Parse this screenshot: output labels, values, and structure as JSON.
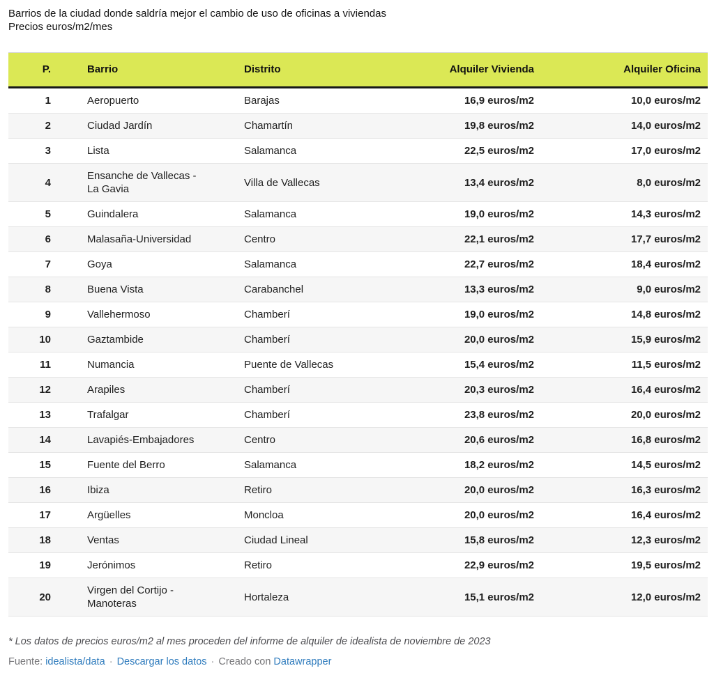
{
  "header": {
    "title": "Barrios de la ciudad donde saldría mejor el cambio de uso de oficinas a viviendas",
    "subtitle": "Precios euros/m2/mes"
  },
  "table": {
    "columns": [
      {
        "key": "rank",
        "label": "P."
      },
      {
        "key": "barrio",
        "label": "Barrio"
      },
      {
        "key": "distrito",
        "label": "Distrito"
      },
      {
        "key": "alquiler-vivienda",
        "label": "Alquiler Vivienda"
      },
      {
        "key": "alquiler-oficina",
        "label": "Alquiler Oficina"
      }
    ],
    "rows": [
      [
        "1",
        "Aeropuerto",
        "Barajas",
        "16,9 euros/m2",
        "10,0 euros/m2"
      ],
      [
        "2",
        "Ciudad Jardín",
        "Chamartín",
        "19,8 euros/m2",
        "14,0 euros/m2"
      ],
      [
        "3",
        "Lista",
        "Salamanca",
        "22,5 euros/m2",
        "17,0 euros/m2"
      ],
      [
        "4",
        "Ensanche de Vallecas -\nLa Gavia",
        "Villa de Vallecas",
        "13,4 euros/m2",
        "8,0 euros/m2"
      ],
      [
        "5",
        "Guindalera",
        "Salamanca",
        "19,0 euros/m2",
        "14,3 euros/m2"
      ],
      [
        "6",
        "Malasaña-Universidad",
        "Centro",
        "22,1 euros/m2",
        "17,7 euros/m2"
      ],
      [
        "7",
        "Goya",
        "Salamanca",
        "22,7 euros/m2",
        "18,4 euros/m2"
      ],
      [
        "8",
        "Buena Vista",
        "Carabanchel",
        "13,3 euros/m2",
        "9,0 euros/m2"
      ],
      [
        "9",
        "Vallehermoso",
        "Chamberí",
        "19,0 euros/m2",
        "14,8 euros/m2"
      ],
      [
        "10",
        "Gaztambide",
        "Chamberí",
        "20,0 euros/m2",
        "15,9 euros/m2"
      ],
      [
        "11",
        "Numancia",
        "Puente de Vallecas",
        "15,4 euros/m2",
        "11,5 euros/m2"
      ],
      [
        "12",
        "Arapiles",
        "Chamberí",
        "20,3 euros/m2",
        "16,4 euros/m2"
      ],
      [
        "13",
        "Trafalgar",
        "Chamberí",
        "23,8 euros/m2",
        "20,0 euros/m2"
      ],
      [
        "14",
        "Lavapiés-Embajadores",
        "Centro",
        "20,6 euros/m2",
        "16,8 euros/m2"
      ],
      [
        "15",
        "Fuente del Berro",
        "Salamanca",
        "18,2 euros/m2",
        "14,5 euros/m2"
      ],
      [
        "16",
        "Ibiza",
        "Retiro",
        "20,0 euros/m2",
        "16,3 euros/m2"
      ],
      [
        "17",
        "Argüelles",
        "Moncloa",
        "20,0 euros/m2",
        "16,4 euros/m2"
      ],
      [
        "18",
        "Ventas",
        "Ciudad Lineal",
        "15,8 euros/m2",
        "12,3 euros/m2"
      ],
      [
        "19",
        "Jerónimos",
        "Retiro",
        "22,9 euros/m2",
        "19,5 euros/m2"
      ],
      [
        "20",
        "Virgen del Cortijo -\nManoteras",
        "Hortaleza",
        "15,1 euros/m2",
        "12,0 euros/m2"
      ]
    ]
  },
  "footer": {
    "note": "* Los datos de precios euros/m2 al mes proceden del informe de alquiler de idealista de noviembre de 2023",
    "source_label": "Fuente:",
    "source_link": "idealista/data",
    "separator": "·",
    "download_link": "Descargar los datos",
    "created_label": "Creado con",
    "created_link": "Datawrapper"
  },
  "colors": {
    "header_bg": "#dbe855",
    "link": "#2e7bbd",
    "stripe": "#f6f6f6",
    "row_border": "#e4e4e4",
    "header_border": "#181818"
  },
  "chart_data": {
    "type": "table",
    "title": "Barrios de la ciudad donde saldría mejor el cambio de uso de oficinas a viviendas",
    "subtitle": "Precios euros/m2/mes",
    "units": "euros/m2/mes",
    "columns": [
      "P.",
      "Barrio",
      "Distrito",
      "Alquiler Vivienda",
      "Alquiler Oficina"
    ],
    "rows": [
      {
        "rank": 1,
        "barrio": "Aeropuerto",
        "distrito": "Barajas",
        "alquiler_vivienda": 16.9,
        "alquiler_oficina": 10.0
      },
      {
        "rank": 2,
        "barrio": "Ciudad Jardín",
        "distrito": "Chamartín",
        "alquiler_vivienda": 19.8,
        "alquiler_oficina": 14.0
      },
      {
        "rank": 3,
        "barrio": "Lista",
        "distrito": "Salamanca",
        "alquiler_vivienda": 22.5,
        "alquiler_oficina": 17.0
      },
      {
        "rank": 4,
        "barrio": "Ensanche de Vallecas - La Gavia",
        "distrito": "Villa de Vallecas",
        "alquiler_vivienda": 13.4,
        "alquiler_oficina": 8.0
      },
      {
        "rank": 5,
        "barrio": "Guindalera",
        "distrito": "Salamanca",
        "alquiler_vivienda": 19.0,
        "alquiler_oficina": 14.3
      },
      {
        "rank": 6,
        "barrio": "Malasaña-Universidad",
        "distrito": "Centro",
        "alquiler_vivienda": 22.1,
        "alquiler_oficina": 17.7
      },
      {
        "rank": 7,
        "barrio": "Goya",
        "distrito": "Salamanca",
        "alquiler_vivienda": 22.7,
        "alquiler_oficina": 18.4
      },
      {
        "rank": 8,
        "barrio": "Buena Vista",
        "distrito": "Carabanchel",
        "alquiler_vivienda": 13.3,
        "alquiler_oficina": 9.0
      },
      {
        "rank": 9,
        "barrio": "Vallehermoso",
        "distrito": "Chamberí",
        "alquiler_vivienda": 19.0,
        "alquiler_oficina": 14.8
      },
      {
        "rank": 10,
        "barrio": "Gaztambide",
        "distrito": "Chamberí",
        "alquiler_vivienda": 20.0,
        "alquiler_oficina": 15.9
      },
      {
        "rank": 11,
        "barrio": "Numancia",
        "distrito": "Puente de Vallecas",
        "alquiler_vivienda": 15.4,
        "alquiler_oficina": 11.5
      },
      {
        "rank": 12,
        "barrio": "Arapiles",
        "distrito": "Chamberí",
        "alquiler_vivienda": 20.3,
        "alquiler_oficina": 16.4
      },
      {
        "rank": 13,
        "barrio": "Trafalgar",
        "distrito": "Chamberí",
        "alquiler_vivienda": 23.8,
        "alquiler_oficina": 20.0
      },
      {
        "rank": 14,
        "barrio": "Lavapiés-Embajadores",
        "distrito": "Centro",
        "alquiler_vivienda": 20.6,
        "alquiler_oficina": 16.8
      },
      {
        "rank": 15,
        "barrio": "Fuente del Berro",
        "distrito": "Salamanca",
        "alquiler_vivienda": 18.2,
        "alquiler_oficina": 14.5
      },
      {
        "rank": 16,
        "barrio": "Ibiza",
        "distrito": "Retiro",
        "alquiler_vivienda": 20.0,
        "alquiler_oficina": 16.3
      },
      {
        "rank": 17,
        "barrio": "Argüelles",
        "distrito": "Moncloa",
        "alquiler_vivienda": 20.0,
        "alquiler_oficina": 16.4
      },
      {
        "rank": 18,
        "barrio": "Ventas",
        "distrito": "Ciudad Lineal",
        "alquiler_vivienda": 15.8,
        "alquiler_oficina": 12.3
      },
      {
        "rank": 19,
        "barrio": "Jerónimos",
        "distrito": "Retiro",
        "alquiler_vivienda": 22.9,
        "alquiler_oficina": 19.5
      },
      {
        "rank": 20,
        "barrio": "Virgen del Cortijo - Manoteras",
        "distrito": "Hortaleza",
        "alquiler_vivienda": 15.1,
        "alquiler_oficina": 12.0
      }
    ]
  }
}
